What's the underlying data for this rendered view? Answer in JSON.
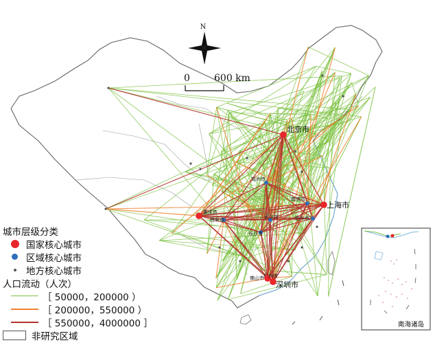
{
  "map": {
    "north_label": "N",
    "scale": {
      "zero": "0",
      "distance": "600 km"
    },
    "inset_title": "南海诸岛",
    "colors": {
      "flow_low": "#7dc242",
      "flow_mid": "#f07f2c",
      "flow_high": "#b3312c",
      "national_core": "#e8262b",
      "regional_core": "#2f6fba",
      "local_core": "#555555",
      "non_study": "#ffffff",
      "coast": "#7fb6dc"
    }
  },
  "cities": {
    "beijing": "北京市",
    "shanghai": "上海市",
    "chongqing": "重庆市",
    "shenzhen": "深圳市",
    "guangzhou": "广州市",
    "zhengzhou": "郑州市",
    "nanjing": "南京市",
    "wuhan": "武汉市",
    "changsha": "长沙市",
    "hangzhou": "杭州市",
    "xian": "西安市",
    "foshan": "佛山市"
  },
  "legend": {
    "hierarchy_title": "城市层级分类",
    "national": "国家核心城市",
    "regional": "区域核心城市",
    "local": "地方核心城市",
    "flow_title": "人口流动（人次）",
    "flow_1": "［ 50000，200000 ）",
    "flow_2": "［ 200000，550000 ）",
    "flow_3": "［ 550000，4000000 ］",
    "non_study": "非研究区域"
  }
}
